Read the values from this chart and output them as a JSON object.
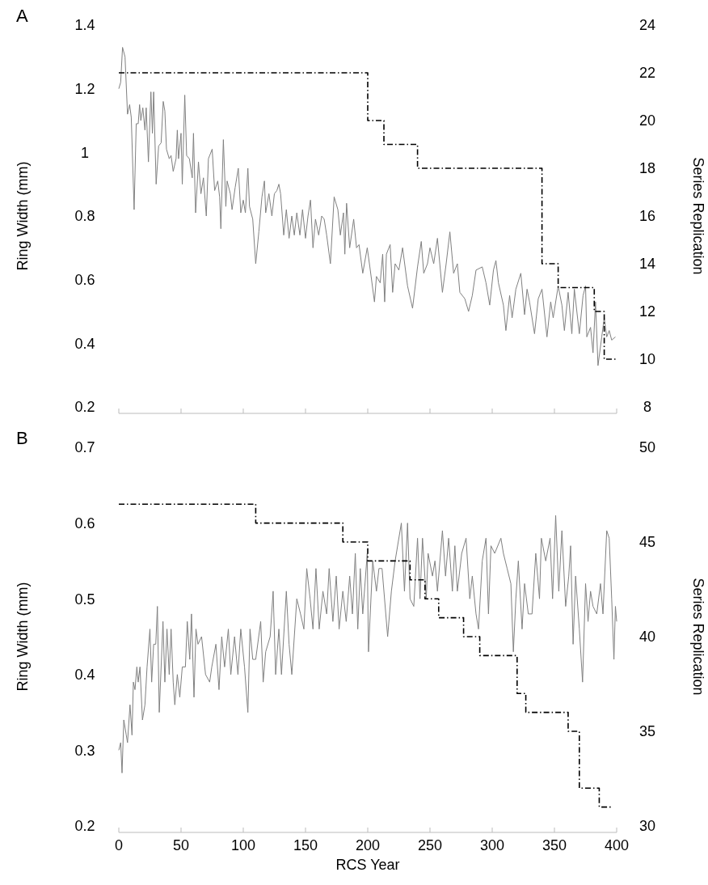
{
  "chart_data": [
    {
      "type": "line",
      "title": "A",
      "ylabel": "Ring Width (mm)",
      "y2label": "Series Replication",
      "xlim": [
        0,
        400
      ],
      "xticks": [
        0,
        50,
        100,
        150,
        200,
        250,
        300,
        350,
        400
      ],
      "ylim": [
        0.2,
        1.4
      ],
      "yticks": [
        0.2,
        0.4,
        0.6,
        0.8,
        1,
        1.2,
        1.4
      ],
      "y2lim": [
        8,
        24
      ],
      "y2ticks": [
        8,
        10,
        12,
        14,
        16,
        18,
        20,
        22,
        24
      ],
      "tick_labels": "y",
      "series": [
        {
          "color": "#808080",
          "x": [
            0,
            1.5,
            3,
            5,
            7,
            8.7,
            10,
            12.3,
            14,
            15.6,
            16.7,
            17.7,
            19.3,
            21,
            22,
            23.8,
            25.8,
            27,
            28,
            30,
            32,
            34,
            35.7,
            37,
            38.3,
            40.5,
            42,
            43.7,
            46,
            47,
            48,
            50,
            51,
            53,
            54.5,
            56.7,
            59,
            60,
            61.7,
            64,
            66,
            68,
            70.3,
            72,
            75,
            77,
            79.5,
            81,
            82,
            84,
            86,
            87,
            89.6,
            91,
            93.5,
            96,
            98,
            100,
            101.7,
            103.7,
            105,
            107.6,
            110,
            112.5,
            115,
            117,
            118,
            120.6,
            123,
            125,
            127,
            128.6,
            130,
            132.5,
            134.6,
            136.8,
            139,
            141,
            143,
            145.5,
            147.6,
            150,
            152,
            154,
            156,
            158,
            160.6,
            163,
            165,
            167,
            170,
            173,
            176,
            178,
            180.5,
            181.6,
            183,
            185.5,
            188.7,
            191,
            193,
            196,
            199.6,
            201.7,
            205.4,
            207,
            210,
            212,
            213.6,
            215,
            218,
            220,
            222,
            225,
            228,
            232,
            236,
            240,
            243,
            245,
            248,
            250,
            253,
            256,
            260,
            263,
            266,
            269,
            272,
            274,
            278,
            281,
            284,
            287,
            292,
            295,
            298,
            301,
            303,
            305,
            309,
            311,
            314,
            316,
            319,
            323,
            326,
            328,
            330,
            334,
            337,
            340,
            344,
            347,
            349,
            353,
            356,
            358,
            361,
            364,
            366,
            370,
            373,
            375,
            376,
            379,
            381,
            383,
            385,
            388,
            390,
            392,
            394,
            396,
            399
          ],
          "values": [
            1.2,
            1.22,
            1.33,
            1.3,
            1.12,
            1.15,
            1.11,
            0.82,
            1.09,
            1.09,
            1.15,
            1.1,
            1.14,
            1.07,
            1.14,
            0.97,
            1.19,
            1.06,
            1.19,
            0.9,
            1.02,
            1.03,
            1.16,
            1.13,
            1.01,
            0.98,
            0.99,
            0.94,
            0.98,
            1.07,
            0.98,
            1.06,
            0.9,
            1.18,
            0.99,
            0.98,
            0.92,
            1.06,
            0.81,
            0.97,
            0.87,
            0.92,
            0.8,
            0.98,
            1.01,
            0.88,
            0.91,
            0.86,
            0.76,
            1.04,
            0.83,
            0.91,
            0.87,
            0.82,
            0.89,
            0.95,
            0.81,
            0.85,
            0.81,
            0.95,
            0.83,
            0.79,
            0.65,
            0.75,
            0.86,
            0.91,
            0.81,
            0.87,
            0.8,
            0.87,
            0.88,
            0.9,
            0.87,
            0.74,
            0.82,
            0.73,
            0.8,
            0.74,
            0.81,
            0.74,
            0.82,
            0.73,
            0.8,
            0.85,
            0.7,
            0.79,
            0.74,
            0.8,
            0.79,
            0.74,
            0.65,
            0.86,
            0.82,
            0.74,
            0.81,
            0.68,
            0.84,
            0.7,
            0.79,
            0.7,
            0.71,
            0.62,
            0.7,
            0.64,
            0.53,
            0.61,
            0.59,
            0.68,
            0.53,
            0.68,
            0.71,
            0.56,
            0.65,
            0.63,
            0.7,
            0.58,
            0.51,
            0.64,
            0.72,
            0.62,
            0.65,
            0.7,
            0.65,
            0.73,
            0.56,
            0.65,
            0.75,
            0.62,
            0.65,
            0.56,
            0.54,
            0.5,
            0.55,
            0.63,
            0.64,
            0.59,
            0.52,
            0.63,
            0.66,
            0.59,
            0.52,
            0.44,
            0.55,
            0.48,
            0.57,
            0.62,
            0.49,
            0.57,
            0.53,
            0.43,
            0.54,
            0.57,
            0.42,
            0.53,
            0.48,
            0.58,
            0.52,
            0.44,
            0.56,
            0.43,
            0.57,
            0.43,
            0.55,
            0.58,
            0.42,
            0.45,
            0.37,
            0.53,
            0.33,
            0.42,
            0.48,
            0.42,
            0.44,
            0.41,
            0.42
          ]
        },
        {
          "type": "step",
          "axis": "y2",
          "color": "#000000",
          "line_style": "dashed",
          "x": [
            0,
            200,
            213,
            240,
            340,
            353,
            382,
            390,
            400
          ],
          "values": [
            22,
            20,
            19,
            18,
            14,
            13,
            12,
            10,
            10
          ]
        }
      ]
    },
    {
      "type": "line",
      "title": "B",
      "xlabel": "RCS Year",
      "ylabel": "Ring Width (mm)",
      "y2label": "Series Replication",
      "xlim": [
        0,
        400
      ],
      "xticks": [
        0,
        50,
        100,
        150,
        200,
        250,
        300,
        350,
        400
      ],
      "ylim": [
        0.2,
        0.7
      ],
      "yticks": [
        0.2,
        0.3,
        0.4,
        0.5,
        0.6,
        0.7
      ],
      "y2lim": [
        30,
        50
      ],
      "y2ticks": [
        30,
        35,
        40,
        45,
        50
      ],
      "series": [
        {
          "color": "#808080",
          "x": [
            0,
            1.5,
            2.6,
            4,
            6,
            7,
            9,
            10.6,
            11.7,
            13,
            14.5,
            15.6,
            17,
            19,
            21,
            22.7,
            25,
            26.4,
            28,
            29.7,
            31,
            32.5,
            35.5,
            37,
            38.7,
            40.5,
            42,
            43.7,
            45,
            47,
            49,
            51,
            53.5,
            55,
            57,
            58.4,
            60.4,
            62,
            63.6,
            66.5,
            69.7,
            73,
            74.7,
            78,
            80.5,
            82.7,
            85,
            88,
            90,
            93,
            95.7,
            98,
            101,
            103.7,
            105.4,
            107.6,
            110,
            114,
            116,
            118,
            121.6,
            124,
            126,
            128.6,
            130.7,
            134.6,
            136.8,
            139,
            143,
            146,
            148.7,
            151,
            153.7,
            156,
            158.4,
            161,
            164,
            167,
            169,
            172,
            174.7,
            177,
            180,
            182.7,
            185.5,
            187.7,
            190,
            192,
            194,
            196,
            199.6,
            200.6,
            204,
            207,
            209,
            211.5,
            216,
            219,
            222,
            227,
            229.5,
            232,
            234,
            237,
            240,
            242,
            244,
            247,
            248.5,
            252,
            254,
            256,
            260,
            262.5,
            265,
            268,
            270,
            272,
            275.5,
            279,
            282,
            284,
            287,
            289,
            292,
            295,
            297,
            299,
            302,
            307,
            309,
            312,
            315,
            317,
            319,
            321,
            324,
            326,
            329,
            332,
            335,
            338,
            339.5,
            343,
            346.5,
            348.5,
            351,
            353.5,
            356,
            359,
            361.5,
            363,
            365,
            367,
            370,
            372.6,
            375,
            377,
            379,
            381,
            384,
            387,
            389,
            392,
            394,
            396,
            397.8,
            399,
            400
          ],
          "values": [
            0.3,
            0.31,
            0.27,
            0.34,
            0.32,
            0.31,
            0.36,
            0.32,
            0.39,
            0.38,
            0.41,
            0.39,
            0.41,
            0.34,
            0.36,
            0.41,
            0.46,
            0.39,
            0.44,
            0.44,
            0.49,
            0.35,
            0.47,
            0.39,
            0.46,
            0.4,
            0.46,
            0.39,
            0.36,
            0.4,
            0.37,
            0.41,
            0.41,
            0.47,
            0.42,
            0.48,
            0.37,
            0.46,
            0.44,
            0.45,
            0.4,
            0.39,
            0.41,
            0.44,
            0.38,
            0.45,
            0.41,
            0.46,
            0.4,
            0.45,
            0.4,
            0.46,
            0.41,
            0.35,
            0.46,
            0.42,
            0.42,
            0.47,
            0.39,
            0.43,
            0.45,
            0.51,
            0.4,
            0.46,
            0.4,
            0.51,
            0.44,
            0.4,
            0.5,
            0.48,
            0.46,
            0.54,
            0.5,
            0.46,
            0.54,
            0.46,
            0.51,
            0.48,
            0.54,
            0.47,
            0.53,
            0.46,
            0.51,
            0.47,
            0.53,
            0.48,
            0.56,
            0.46,
            0.54,
            0.48,
            0.56,
            0.43,
            0.55,
            0.51,
            0.54,
            0.54,
            0.45,
            0.51,
            0.55,
            0.6,
            0.51,
            0.6,
            0.5,
            0.49,
            0.58,
            0.5,
            0.58,
            0.5,
            0.56,
            0.53,
            0.55,
            0.51,
            0.59,
            0.53,
            0.58,
            0.51,
            0.57,
            0.51,
            0.56,
            0.58,
            0.5,
            0.53,
            0.48,
            0.46,
            0.55,
            0.58,
            0.48,
            0.57,
            0.56,
            0.58,
            0.56,
            0.54,
            0.52,
            0.43,
            0.5,
            0.55,
            0.46,
            0.52,
            0.48,
            0.48,
            0.56,
            0.5,
            0.58,
            0.55,
            0.58,
            0.5,
            0.61,
            0.51,
            0.59,
            0.49,
            0.53,
            0.57,
            0.44,
            0.53,
            0.46,
            0.39,
            0.52,
            0.47,
            0.51,
            0.49,
            0.48,
            0.52,
            0.48,
            0.59,
            0.58,
            0.5,
            0.42,
            0.49,
            0.47
          ]
        },
        {
          "type": "step",
          "axis": "y2",
          "color": "#000000",
          "line_style": "dashed",
          "x": [
            0,
            110,
            180,
            200,
            234,
            246,
            257,
            277,
            290,
            320,
            327,
            361,
            370,
            386,
            396
          ],
          "values": [
            47,
            46,
            45,
            44,
            43,
            42,
            41,
            40,
            39,
            37,
            36,
            35,
            32,
            31,
            31
          ]
        }
      ]
    }
  ]
}
